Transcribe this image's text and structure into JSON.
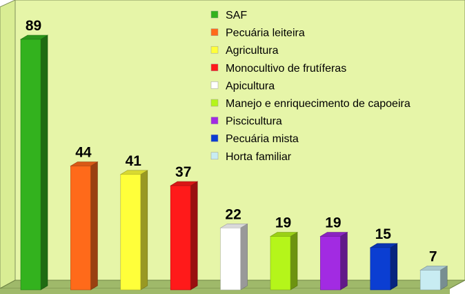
{
  "chart_data": {
    "type": "bar",
    "categories": [
      "SAF",
      "Pecuária leiteira",
      "Agricultura",
      "Monocultivo de frutíferas",
      "Apicultura",
      "Manejo e enriquecimento de capoeira",
      "Piscicultura",
      "Pecuária mista",
      "Horta familiar"
    ],
    "values": [
      89,
      44,
      41,
      37,
      22,
      19,
      19,
      15,
      7
    ],
    "colors": [
      "#33b21e",
      "#ff6a1a",
      "#ffff3a",
      "#ff1a1a",
      "#ffffff",
      "#b5f51a",
      "#a22be2",
      "#0b3ed2",
      "#c8ecf2"
    ],
    "legend_position": "top-right",
    "data_labels": true,
    "style": "3d-bars",
    "background_color": "#e6f5a8",
    "floor_color": "#9fb96a",
    "title": "",
    "xlabel": "",
    "ylabel": "",
    "ylim": [
      0,
      90
    ]
  }
}
